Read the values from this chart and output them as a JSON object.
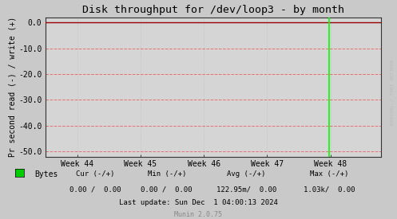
{
  "title": "Disk throughput for /dev/loop3 - by month",
  "ylabel": "Pr second read (-) / write (+)",
  "ylim": [
    -52,
    2
  ],
  "yticks": [
    0.0,
    -10.0,
    -20.0,
    -30.0,
    -40.0,
    -50.0
  ],
  "xlim": [
    0,
    5.3
  ],
  "xtick_positions": [
    0.5,
    1.5,
    2.5,
    3.5,
    4.5
  ],
  "xtick_labels": [
    "Week 44",
    "Week 45",
    "Week 46",
    "Week 47",
    "Week 48"
  ],
  "bg_color": "#c9c9c9",
  "plot_bg_color": "#d5d5d5",
  "grid_color_major": "#e87070",
  "grid_color_minor": "#c0c0c0",
  "title_color": "#000000",
  "axis_color": "#000000",
  "tick_color": "#000000",
  "line_color": "#00ff00",
  "border_color": "#222222",
  "zero_line_color": "#990000",
  "watermark_text": "RRDTOOL / TOBI OETIKER",
  "watermark_color": "#bbbbbb",
  "legend_label": "Bytes",
  "legend_color": "#00cc00",
  "cur_label": "Cur (-/+)",
  "min_label": "Min (-/+)",
  "avg_label": "Avg (-/+)",
  "max_label": "Max (-/+)",
  "cur_val": "0.00 /  0.00",
  "min_val": "0.00 /  0.00",
  "avg_val": "122.95m/  0.00",
  "max_val": "1.03k/  0.00",
  "last_update": "Last update: Sun Dec  1 04:00:13 2024",
  "munin_version": "Munin 2.0.75",
  "green_line_x": 4.48
}
